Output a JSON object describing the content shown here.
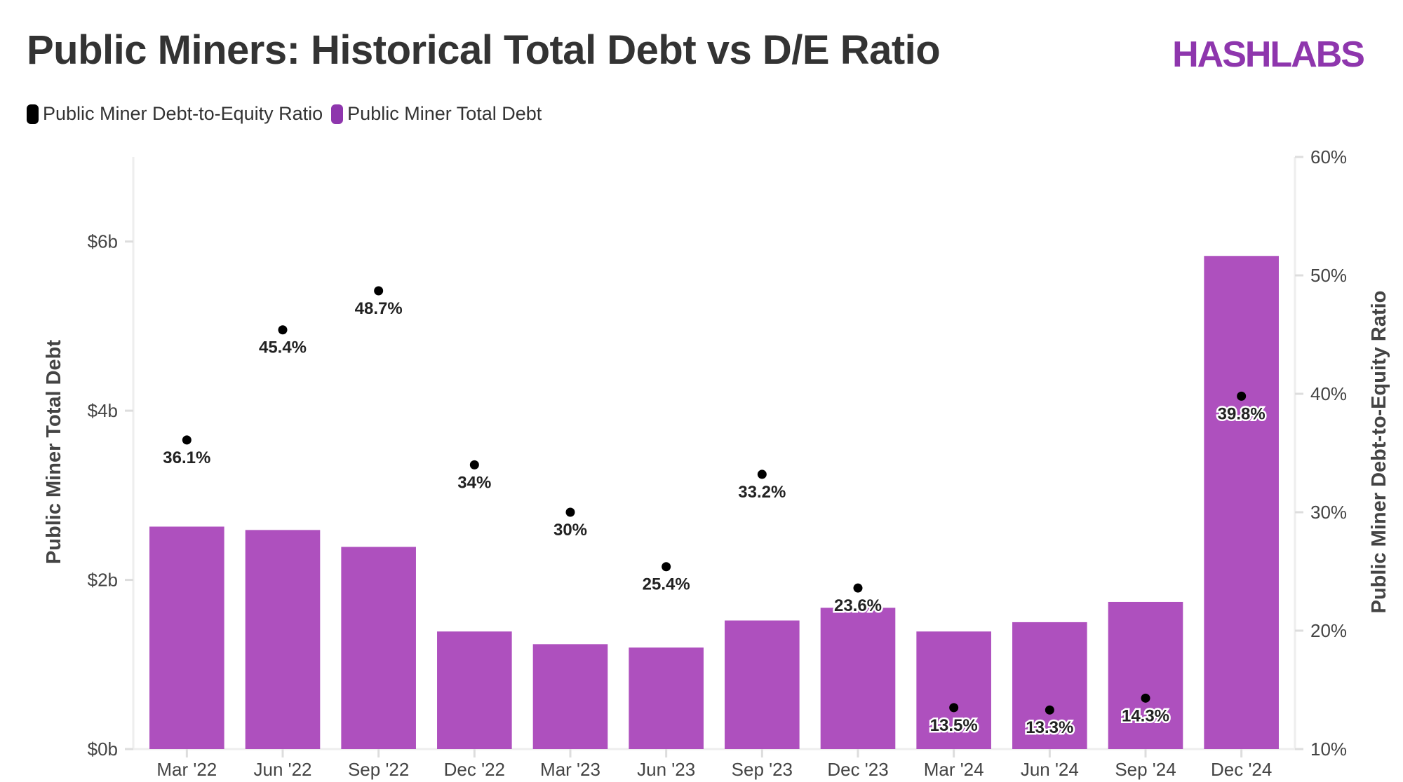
{
  "header": {
    "title": "Public Miners: Historical Total Debt vs D/E Ratio",
    "logo": "HASHLABS"
  },
  "colors": {
    "bar": "#ae50be",
    "dot": "#000000",
    "logo": "#8e36ad"
  },
  "chart_data": {
    "type": "bar+scatter",
    "title": "Public Miners: Historical Total Debt vs D/E Ratio",
    "legend": {
      "position": "top-left",
      "entries": [
        "Public Miner Debt-to-Equity Ratio",
        "Public Miner Total Debt"
      ]
    },
    "categories": [
      "Mar '22",
      "Jun '22",
      "Sep '22",
      "Dec '22",
      "Mar '23",
      "Jun '23",
      "Sep '23",
      "Dec '23",
      "Mar '24",
      "Jun '24",
      "Sep '24",
      "Dec '24"
    ],
    "series": [
      {
        "name": "Public Miner Total Debt",
        "type": "bar",
        "axis": "left",
        "unit": "$b",
        "values": [
          2.63,
          2.59,
          2.39,
          1.39,
          1.24,
          1.2,
          1.52,
          1.67,
          1.39,
          1.5,
          1.74,
          5.83
        ]
      },
      {
        "name": "Public Miner Debt-to-Equity Ratio",
        "type": "scatter",
        "axis": "right",
        "unit": "%",
        "values": [
          36.1,
          45.4,
          48.7,
          34,
          30,
          25.4,
          33.2,
          23.6,
          13.5,
          13.3,
          14.3,
          39.8
        ],
        "labels": [
          "36.1%",
          "45.4%",
          "48.7%",
          "34%",
          "30%",
          "25.4%",
          "33.2%",
          "23.6%",
          "13.5%",
          "13.3%",
          "14.3%",
          "39.8%"
        ]
      }
    ],
    "ylabel": "Public Miner Total Debt",
    "y2label": "Public Miner Debt-to-Equity Ratio",
    "ylim": [
      0,
      7
    ],
    "y2lim": [
      10,
      60
    ],
    "yticks": [
      "$0b",
      "$2b",
      "$4b",
      "$6b"
    ],
    "ytick_values": [
      0,
      2,
      4,
      6
    ],
    "y2ticks": [
      "10%",
      "20%",
      "30%",
      "40%",
      "50%",
      "60%"
    ],
    "y2tick_values": [
      10,
      20,
      30,
      40,
      50,
      60
    ],
    "grid": false
  }
}
